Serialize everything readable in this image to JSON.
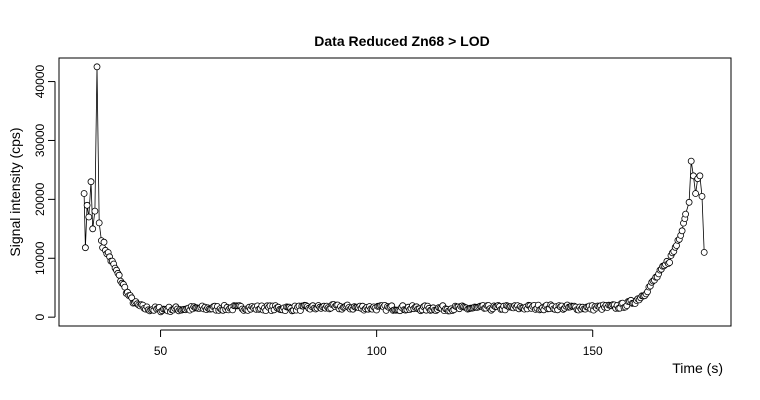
{
  "chart_data": {
    "type": "line",
    "title": "Data Reduced Zn68 > LOD",
    "xlabel": "Time (s)",
    "ylabel": "Signal intensity (cps)",
    "xlim": [
      26.5,
      182
    ],
    "ylim": [
      -1500,
      44000
    ],
    "xticks": [
      50,
      100,
      150
    ],
    "yticks": [
      0,
      10000,
      20000,
      30000,
      40000
    ],
    "grid": false,
    "legend": "none",
    "colors": {
      "line": "#000000",
      "marker_stroke": "#000000",
      "marker_fill": "#ffffff",
      "frame": "#000000"
    },
    "series_anchors": [
      [
        32.3,
        21000
      ],
      [
        32.6,
        11800
      ],
      [
        33.0,
        19000
      ],
      [
        33.4,
        17000
      ],
      [
        33.9,
        23000
      ],
      [
        34.3,
        15000
      ],
      [
        34.8,
        18000
      ],
      [
        35.3,
        42500
      ],
      [
        35.8,
        16000
      ],
      [
        36.3,
        13000
      ],
      [
        37.0,
        12000
      ],
      [
        38.0,
        10500
      ],
      [
        39.0,
        9000
      ],
      [
        40.0,
        7500
      ],
      [
        41.0,
        6000
      ],
      [
        42.0,
        4500
      ],
      [
        43.0,
        3300
      ],
      [
        44.0,
        2400
      ],
      [
        45.0,
        1900
      ],
      [
        47.0,
        1400
      ],
      [
        50.0,
        1300
      ],
      [
        60.0,
        1500
      ],
      [
        70.0,
        1600
      ],
      [
        80.0,
        1500
      ],
      [
        90.0,
        1700
      ],
      [
        100.0,
        1600
      ],
      [
        110.0,
        1500
      ],
      [
        120.0,
        1500
      ],
      [
        130.0,
        1600
      ],
      [
        140.0,
        1700
      ],
      [
        150.0,
        1600
      ],
      [
        156.0,
        1800
      ],
      [
        158.0,
        2200
      ],
      [
        160.0,
        2800
      ],
      [
        162.0,
        4000
      ],
      [
        164.0,
        6000
      ],
      [
        166.0,
        8000
      ],
      [
        168.0,
        10000
      ],
      [
        169.5,
        12500
      ],
      [
        170.5,
        15000
      ],
      [
        171.5,
        17500
      ],
      [
        172.3,
        19500
      ],
      [
        172.8,
        26500
      ],
      [
        173.3,
        24000
      ],
      [
        173.8,
        21000
      ],
      [
        174.3,
        23500
      ],
      [
        174.8,
        24000
      ],
      [
        175.3,
        20500
      ],
      [
        175.8,
        11000
      ]
    ]
  }
}
